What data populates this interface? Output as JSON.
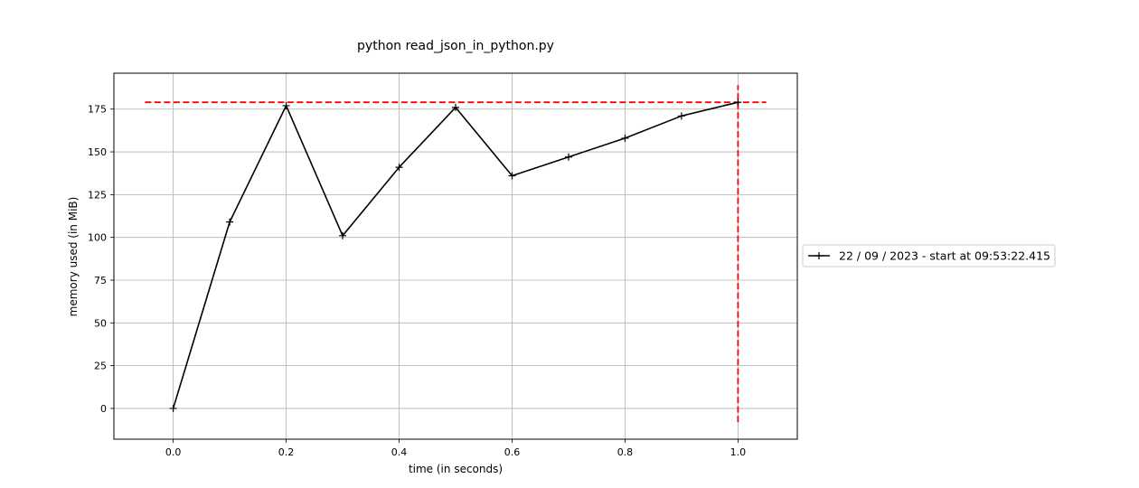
{
  "chart_data": {
    "type": "line",
    "title": "python read_json_in_python.py",
    "xlabel": "time (in seconds)",
    "ylabel": "memory used (in MiB)",
    "xlim": [
      -0.105,
      1.105
    ],
    "ylim": [
      -18,
      196
    ],
    "xticks": [
      0.0,
      0.2,
      0.4,
      0.6,
      0.8,
      1.0
    ],
    "xtick_labels": [
      "0.0",
      "0.2",
      "0.4",
      "0.6",
      "0.8",
      "1.0"
    ],
    "yticks": [
      0,
      25,
      50,
      75,
      100,
      125,
      150,
      175
    ],
    "ytick_labels": [
      "0",
      "25",
      "50",
      "75",
      "100",
      "125",
      "150",
      "175"
    ],
    "grid": true,
    "legend_position": "center-left outside right",
    "series": [
      {
        "name": "22 / 09 / 2023 - start at 09:53:22.415",
        "color": "#000000",
        "marker": "+",
        "x": [
          0.0,
          0.1,
          0.2,
          0.3,
          0.4,
          0.5,
          0.6,
          0.7,
          0.8,
          0.9,
          1.0
        ],
        "y": [
          0,
          109,
          177,
          101,
          141,
          176,
          136,
          147,
          158,
          171,
          179
        ]
      }
    ],
    "reference_lines": [
      {
        "orientation": "horizontal",
        "value": 179,
        "from": -0.05,
        "to": 1.05,
        "color": "#ff0000",
        "style": "dashed"
      },
      {
        "orientation": "vertical",
        "value": 1.0,
        "from": -8,
        "to": 189,
        "color": "#ff0000",
        "style": "dashed"
      }
    ]
  }
}
